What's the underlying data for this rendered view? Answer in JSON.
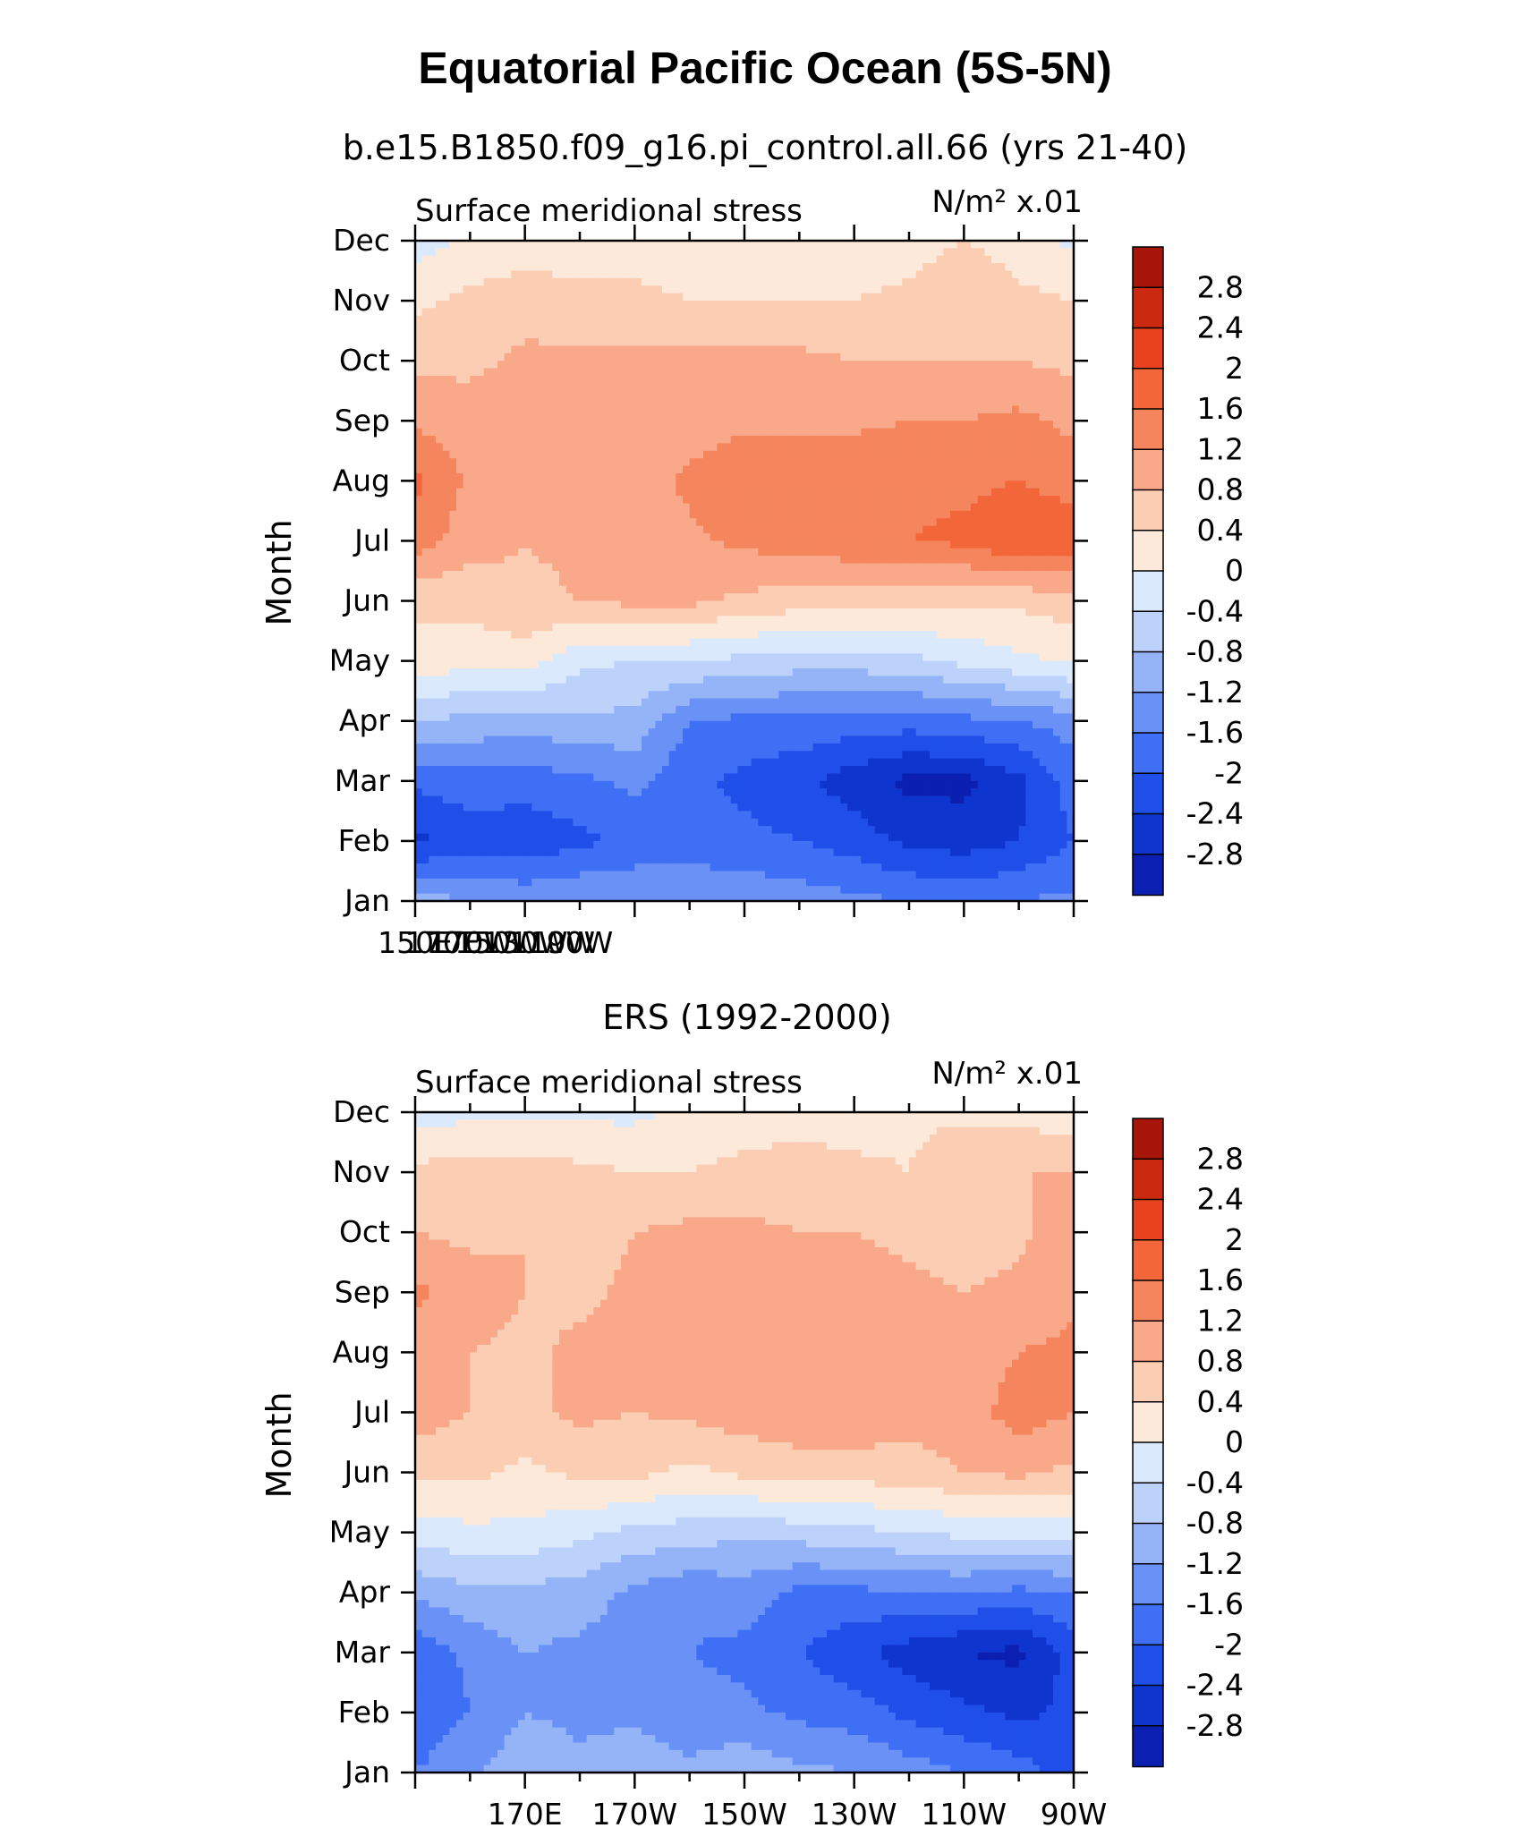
{
  "title": "Equatorial Pacific Ocean (5S-5N)",
  "colors": {
    "levels_palette": [
      "#08088c",
      "#0b1fb0",
      "#0f35cf",
      "#1f4fe8",
      "#3f6ff4",
      "#6a92f6",
      "#95b4f8",
      "#bdd2fb",
      "#dbe9fd",
      "#fde9da",
      "#fbcdb2",
      "#f9a98a",
      "#f5855c",
      "#f2663a",
      "#e8421f",
      "#cc2a10",
      "#a6160b",
      "#7f0b05"
    ]
  },
  "colorbar": {
    "labels": [
      "2.8",
      "2.4",
      "2",
      "1.6",
      "1.2",
      "0.8",
      "0.4",
      "0",
      "-0.4",
      "-0.8",
      "-1.2",
      "-1.6",
      "-2",
      "-2.4",
      "-2.8"
    ]
  },
  "chart_data": [
    {
      "type": "heatmap",
      "subtitle": "b.e15.B1850.f09_g16.pi_control.all.66 (yrs 21-40)",
      "left_label": "Surface meridional stress",
      "right_label": "N/m² x.01",
      "ylabel": "Month",
      "x_tick_labels": [
        "150E",
        "170E",
        "170W",
        "150W",
        "130W",
        "110W",
        "90W"
      ],
      "y_tick_labels": [
        "Jan",
        "Feb",
        "Mar",
        "Apr",
        "May",
        "Jun",
        "Jul",
        "Aug",
        "Sep",
        "Oct",
        "Nov",
        "Dec"
      ],
      "x_longitudes": [
        150,
        155,
        160,
        165,
        170,
        175,
        180,
        185,
        190,
        195,
        200,
        205,
        210,
        215,
        220,
        225,
        230,
        235,
        240,
        245,
        250,
        255,
        260,
        265,
        270
      ],
      "months": [
        "Jan",
        "Feb",
        "Mar",
        "Apr",
        "May",
        "Jun",
        "Jul",
        "Aug",
        "Sep",
        "Oct",
        "Nov",
        "Dec"
      ],
      "anchor_longitudes": [
        150,
        160,
        170,
        180,
        190,
        200,
        210,
        220,
        230,
        240,
        250,
        260,
        270
      ],
      "anchor_values": [
        [
          -1.0,
          -1.2,
          -1.3,
          -1.2,
          -1.2,
          -1.3,
          -1.3,
          -1.4,
          -1.5,
          -1.6,
          -1.7,
          -1.6,
          -1.5
        ],
        [
          -2.5,
          -2.2,
          -2.3,
          -2.1,
          -1.9,
          -1.8,
          -1.9,
          -2.0,
          -2.2,
          -2.5,
          -2.6,
          -2.4,
          -2.0
        ],
        [
          -1.9,
          -1.8,
          -1.8,
          -1.7,
          -1.5,
          -1.9,
          -2.1,
          -2.3,
          -2.6,
          -2.9,
          -2.9,
          -2.5,
          -1.8
        ],
        [
          -0.8,
          -0.9,
          -1.0,
          -0.9,
          -0.9,
          -1.6,
          -1.7,
          -1.7,
          -1.8,
          -1.8,
          -1.7,
          -1.6,
          -1.4
        ],
        [
          0.2,
          0.2,
          0.2,
          -0.3,
          -0.4,
          -0.4,
          -0.5,
          -0.6,
          -0.6,
          -0.5,
          -0.3,
          -0.1,
          0.1
        ],
        [
          0.5,
          0.5,
          0.7,
          0.8,
          0.9,
          0.9,
          0.7,
          0.6,
          0.6,
          0.5,
          0.5,
          0.5,
          0.6
        ],
        [
          1.4,
          1.0,
          0.8,
          0.9,
          1.0,
          1.1,
          1.3,
          1.4,
          1.5,
          1.6,
          1.7,
          2.0,
          1.9
        ],
        [
          1.7,
          1.1,
          0.9,
          0.9,
          1.0,
          1.3,
          1.5,
          1.6,
          1.6,
          1.5,
          1.5,
          1.6,
          1.4
        ],
        [
          1.1,
          1.0,
          0.9,
          0.9,
          1.0,
          1.0,
          1.1,
          1.1,
          1.1,
          1.2,
          1.2,
          1.3,
          1.1
        ],
        [
          0.7,
          0.7,
          0.9,
          0.9,
          0.9,
          0.9,
          0.9,
          0.9,
          0.8,
          0.8,
          0.8,
          0.8,
          0.7
        ],
        [
          0.3,
          0.5,
          0.6,
          0.5,
          0.5,
          0.4,
          0.4,
          0.4,
          0.4,
          0.5,
          0.8,
          0.5,
          0.4
        ],
        [
          -0.2,
          0.1,
          0.2,
          0.2,
          0.2,
          0.2,
          0.2,
          0.2,
          0.2,
          0.2,
          0.4,
          0.2,
          -0.1
        ]
      ],
      "xlim": [
        150,
        270
      ],
      "levels": [
        -2.8,
        -2.4,
        -2.0,
        -1.6,
        -1.2,
        -0.8,
        -0.4,
        0,
        0.4,
        0.8,
        1.2,
        1.6,
        2.0,
        2.4,
        2.8
      ]
    },
    {
      "type": "heatmap",
      "subtitle": "ERS (1992-2000)",
      "left_label": "Surface meridional stress",
      "right_label": "N/m² x.01",
      "ylabel": "Month",
      "x_tick_labels": [
        "170E",
        "170W",
        "150W",
        "130W",
        "110W",
        "90W"
      ],
      "y_tick_labels": [
        "Jan",
        "Feb",
        "Mar",
        "Apr",
        "May",
        "Jun",
        "Jul",
        "Aug",
        "Sep",
        "Oct",
        "Nov",
        "Dec"
      ],
      "x_longitudes": [
        170,
        190,
        210,
        230,
        250,
        270
      ],
      "months": [
        "Jan",
        "Feb",
        "Mar",
        "Apr",
        "May",
        "Jun",
        "Jul",
        "Aug",
        "Sep",
        "Oct",
        "Nov",
        "Dec"
      ],
      "anchor_longitudes": [
        150,
        160,
        170,
        180,
        190,
        200,
        210,
        220,
        230,
        240,
        250,
        260,
        270
      ],
      "anchor_values": [
        [
          -1.6,
          -1.3,
          -0.9,
          -1.1,
          -0.9,
          -1.1,
          -0.9,
          -1.1,
          -1.2,
          -1.4,
          -1.6,
          -1.8,
          -2.2
        ],
        [
          -1.9,
          -1.6,
          -1.2,
          -1.3,
          -1.3,
          -1.5,
          -1.5,
          -1.7,
          -1.8,
          -2.1,
          -2.3,
          -2.5,
          -2.3
        ],
        [
          -1.9,
          -1.5,
          -1.2,
          -1.3,
          -1.4,
          -1.6,
          -1.7,
          -2.0,
          -2.3,
          -2.6,
          -2.8,
          -2.9,
          -2.2
        ],
        [
          -1.1,
          -0.9,
          -0.9,
          -1.0,
          -1.3,
          -1.5,
          -1.4,
          -1.7,
          -1.7,
          -1.6,
          -1.6,
          -1.7,
          -1.6
        ],
        [
          -0.2,
          -0.1,
          -0.1,
          -0.3,
          -0.5,
          -0.6,
          -0.7,
          -0.6,
          -0.5,
          -0.4,
          -0.3,
          -0.3,
          -0.2
        ],
        [
          0.5,
          0.5,
          0.3,
          0.5,
          0.5,
          0.3,
          0.5,
          0.6,
          0.6,
          0.6,
          0.8,
          0.9,
          0.7
        ],
        [
          1.0,
          0.8,
          0.7,
          0.9,
          0.8,
          0.9,
          1.0,
          1.1,
          1.1,
          1.0,
          1.0,
          1.4,
          1.2
        ],
        [
          1.0,
          0.8,
          0.7,
          0.9,
          0.9,
          1.0,
          1.0,
          1.0,
          1.0,
          1.0,
          0.9,
          1.2,
          1.3
        ],
        [
          1.3,
          1.0,
          0.8,
          0.7,
          0.9,
          1.0,
          1.0,
          1.0,
          1.0,
          0.9,
          0.8,
          0.9,
          1.1
        ],
        [
          0.8,
          0.7,
          0.8,
          0.6,
          0.8,
          0.9,
          0.9,
          0.8,
          0.8,
          0.7,
          0.6,
          0.7,
          1.1
        ],
        [
          0.5,
          0.6,
          0.6,
          0.5,
          0.4,
          0.4,
          0.5,
          0.6,
          0.5,
          0.4,
          0.8,
          0.8,
          0.8
        ],
        [
          -0.2,
          -0.1,
          -0.1,
          -0.1,
          -0.1,
          0.1,
          0.2,
          0.2,
          0.2,
          0.3,
          0.3,
          0.3,
          0.1
        ]
      ],
      "xlim": [
        150,
        270
      ],
      "levels": [
        -2.8,
        -2.4,
        -2.0,
        -1.6,
        -1.2,
        -0.8,
        -0.4,
        0,
        0.4,
        0.8,
        1.2,
        1.6,
        2.0,
        2.4,
        2.8
      ]
    }
  ]
}
